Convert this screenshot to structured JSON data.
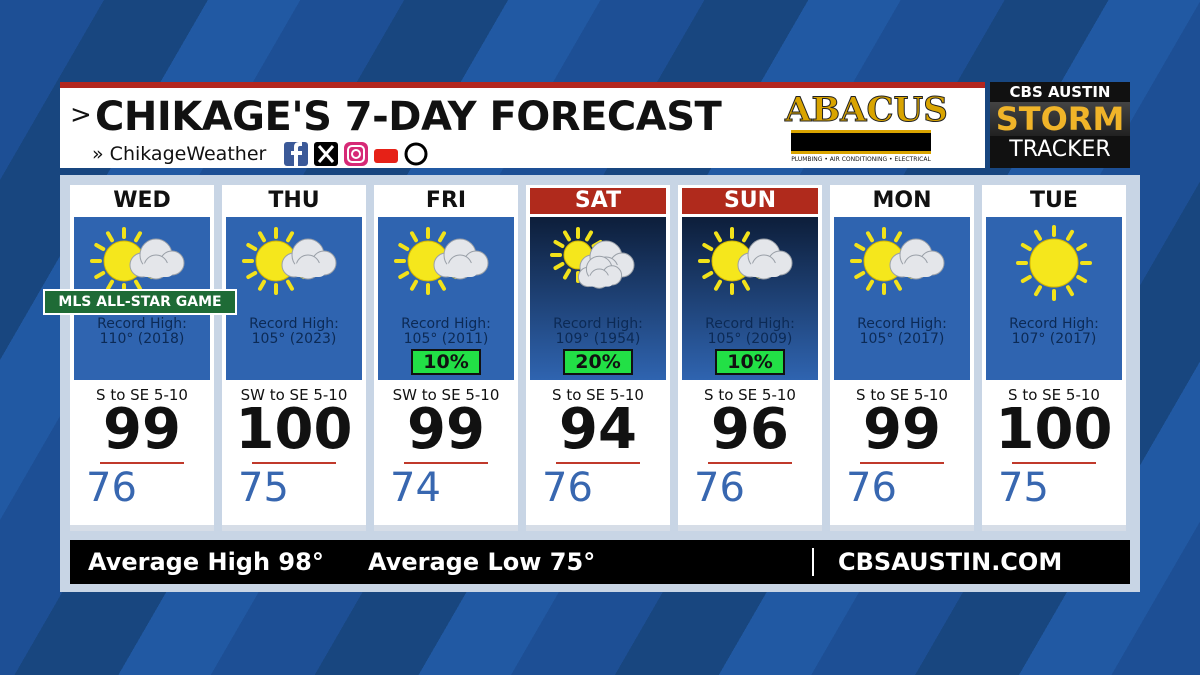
{
  "header": {
    "title": "CHIKAGE'S 7-DAY FORECAST",
    "handle": "ChikageWeather",
    "sponsor": "ABACUS",
    "sponsor_tagline": "PLUMBING • AIR CONDITIONING • ELECTRICAL",
    "station": "CBS AUSTIN",
    "brand_top": "STORM",
    "brand_bottom": "TRACKER"
  },
  "banner": "MLS ALL-STAR GAME",
  "days": [
    {
      "day": "WED",
      "icon": "partly-cloudy",
      "weekend": false,
      "record_label": "Record High:",
      "record": "110° (2018)",
      "rain": null,
      "wind": "S to SE 5-10",
      "high": 99,
      "low": 76
    },
    {
      "day": "THU",
      "icon": "partly-cloudy",
      "weekend": false,
      "record_label": "Record High:",
      "record": "105° (2023)",
      "rain": null,
      "wind": "SW to SE 5-10",
      "high": 100,
      "low": 75
    },
    {
      "day": "FRI",
      "icon": "partly-cloudy",
      "weekend": false,
      "record_label": "Record High:",
      "record": "105° (2011)",
      "rain": "10%",
      "wind": "SW to SE 5-10",
      "high": 99,
      "low": 74
    },
    {
      "day": "SAT",
      "icon": "mostly-cloudy",
      "weekend": true,
      "record_label": "Record High:",
      "record": "109° (1954)",
      "rain": "20%",
      "wind": "S to SE 5-10",
      "high": 94,
      "low": 76
    },
    {
      "day": "SUN",
      "icon": "partly-cloudy",
      "weekend": true,
      "record_label": "Record High:",
      "record": "105° (2009)",
      "rain": "10%",
      "wind": "S to SE 5-10",
      "high": 96,
      "low": 76
    },
    {
      "day": "MON",
      "icon": "partly-cloudy",
      "weekend": false,
      "record_label": "Record High:",
      "record": "105° (2017)",
      "rain": null,
      "wind": "S to SE 5-10",
      "high": 99,
      "low": 76
    },
    {
      "day": "TUE",
      "icon": "sunny",
      "weekend": false,
      "record_label": "Record High:",
      "record": "107° (2017)",
      "rain": null,
      "wind": "S to SE 5-10",
      "high": 100,
      "low": 75
    }
  ],
  "footer": {
    "avg_high": "Average High 98°",
    "avg_low": "Average Low 75°",
    "site": "CBSAUSTIN.COM"
  }
}
